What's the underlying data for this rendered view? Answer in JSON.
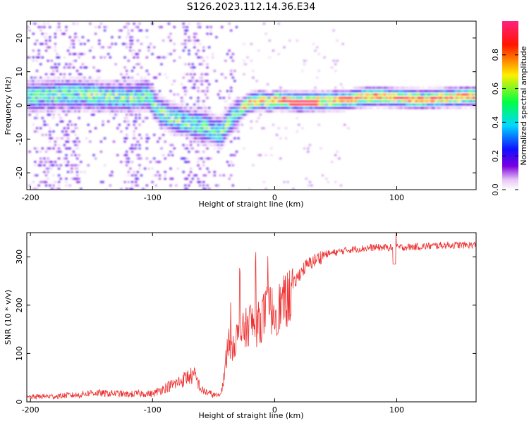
{
  "title": "S126.2023.112.14.36.E34",
  "colors": {
    "line": "#ee3333",
    "frame": "#000000",
    "background": "#ffffff",
    "colormap": [
      "#ffffff",
      "#e6c3f5",
      "#7a00e0",
      "#1010ff",
      "#00d8ff",
      "#00ff44",
      "#ffee00",
      "#ff1500",
      "#ff2080"
    ]
  },
  "chart_data": [
    {
      "type": "heatmap",
      "name": "spectrogram",
      "xlabel": "Height of straight line (km)",
      "ylabel": "Frequency (Hz)",
      "xlim": [
        -203,
        165
      ],
      "ylim": [
        -25,
        25
      ],
      "xticks": [
        -200,
        -100,
        0,
        100
      ],
      "xtick_labels": [
        "-200",
        "-100",
        "0",
        "100"
      ],
      "yticks": [
        20,
        10,
        0,
        -10,
        -20
      ],
      "ytick_labels": [
        "20",
        "10",
        "0",
        "-10",
        "-20"
      ],
      "ridge": {
        "x": [
          -200,
          -180,
          -160,
          -140,
          -120,
          -105,
          -95,
          -85,
          -75,
          -65,
          -55,
          -45,
          -38,
          -30,
          -22,
          -15,
          -10,
          -5,
          0,
          10,
          20,
          40,
          60,
          80,
          100,
          120,
          140,
          165
        ],
        "y": [
          2.5,
          2.8,
          3.0,
          2.5,
          2.0,
          3.0,
          -2.0,
          -4.0,
          -5.0,
          -6.0,
          -7.0,
          -8.5,
          -5.0,
          -2.0,
          0.5,
          1.0,
          1.5,
          0.5,
          1.5,
          1.0,
          0.8,
          1.0,
          1.5,
          2.5,
          2.0,
          1.5,
          2.0,
          2.5
        ]
      },
      "colorbar": {
        "label": "Normalized spectral amplitude",
        "range": [
          0,
          1
        ],
        "ticks": [
          0.0,
          0.2,
          0.4,
          0.6,
          0.8
        ],
        "tick_labels": [
          "0.0",
          "0.2",
          "0.4",
          "0.6",
          "0.8"
        ]
      }
    },
    {
      "type": "line",
      "name": "snr",
      "xlabel": "Height of straight line (km)",
      "ylabel": "SNR (10 * v/v)",
      "xlim": [
        -203,
        165
      ],
      "ylim": [
        0,
        350
      ],
      "xticks": [
        -200,
        -100,
        0,
        100
      ],
      "xtick_labels": [
        "-200",
        "-100",
        "0",
        "100"
      ],
      "yticks": [
        0,
        100,
        200,
        300
      ],
      "ytick_labels": [
        "0",
        "100",
        "200",
        "300"
      ],
      "series": [
        {
          "name": "SNR",
          "x": [
            -203,
            -190,
            -180,
            -170,
            -160,
            -150,
            -140,
            -130,
            -120,
            -110,
            -100,
            -90,
            -80,
            -70,
            -65,
            -60,
            -50,
            -45,
            -42,
            -40,
            -38,
            -35,
            -30,
            -25,
            -20,
            -15,
            -10,
            -5,
            0,
            5,
            10,
            15,
            20,
            25,
            30,
            40,
            50,
            60,
            80,
            100,
            120,
            140,
            165
          ],
          "y": [
            10,
            12,
            12,
            14,
            15,
            20,
            18,
            18,
            16,
            18,
            17,
            30,
            40,
            55,
            55,
            25,
            15,
            12,
            40,
            90,
            130,
            120,
            140,
            150,
            170,
            160,
            180,
            200,
            190,
            205,
            215,
            240,
            265,
            280,
            290,
            305,
            310,
            315,
            320,
            320,
            322,
            325,
            325
          ]
        }
      ]
    }
  ]
}
